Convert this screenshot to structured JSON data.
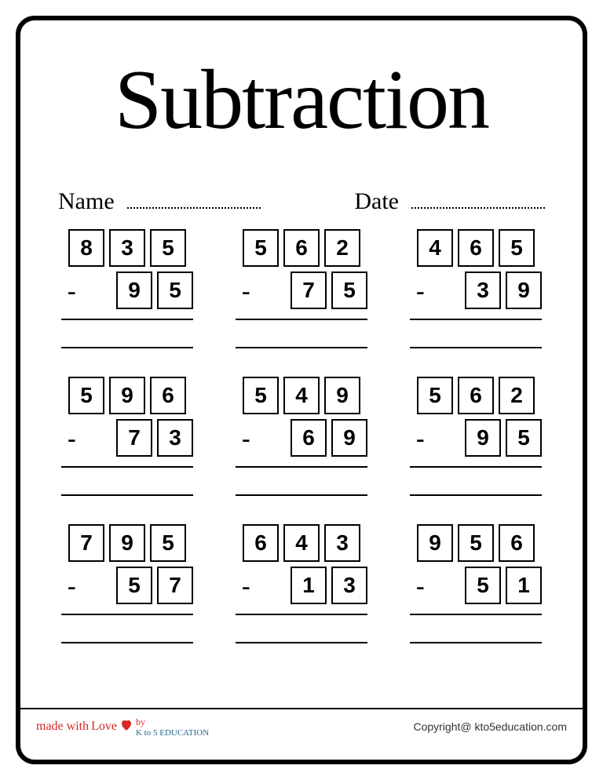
{
  "title": "Subtraction",
  "name_label": "Name",
  "date_label": "Date",
  "problems": [
    {
      "top": [
        "8",
        "3",
        "5"
      ],
      "bottom": [
        "9",
        "5"
      ]
    },
    {
      "top": [
        "5",
        "6",
        "2"
      ],
      "bottom": [
        "7",
        "5"
      ]
    },
    {
      "top": [
        "4",
        "6",
        "5"
      ],
      "bottom": [
        "3",
        "9"
      ]
    },
    {
      "top": [
        "5",
        "9",
        "6"
      ],
      "bottom": [
        "7",
        "3"
      ]
    },
    {
      "top": [
        "5",
        "4",
        "9"
      ],
      "bottom": [
        "6",
        "9"
      ]
    },
    {
      "top": [
        "5",
        "6",
        "2"
      ],
      "bottom": [
        "9",
        "5"
      ]
    },
    {
      "top": [
        "7",
        "9",
        "5"
      ],
      "bottom": [
        "5",
        "7"
      ]
    },
    {
      "top": [
        "6",
        "4",
        "3"
      ],
      "bottom": [
        "1",
        "3"
      ]
    },
    {
      "top": [
        "9",
        "5",
        "6"
      ],
      "bottom": [
        "5",
        "1"
      ]
    }
  ],
  "minus_sign": "-",
  "footer": {
    "made_with": "made with",
    "love": "Love",
    "by": "by",
    "brand": "K to 5 EDUCATION",
    "copyright": "Copyright@ kto5education.com"
  },
  "colors": {
    "border": "#000000",
    "text": "#000000",
    "accent_red": "#d62828",
    "accent_blue": "#226688",
    "background": "#ffffff"
  },
  "styling": {
    "title_fontsize": 108,
    "label_fontsize": 30,
    "digit_fontsize": 28,
    "digit_box_width": 46,
    "digit_box_height": 48,
    "digit_box_border": 2.5,
    "page_border_width": 6,
    "page_border_radius": 24
  }
}
